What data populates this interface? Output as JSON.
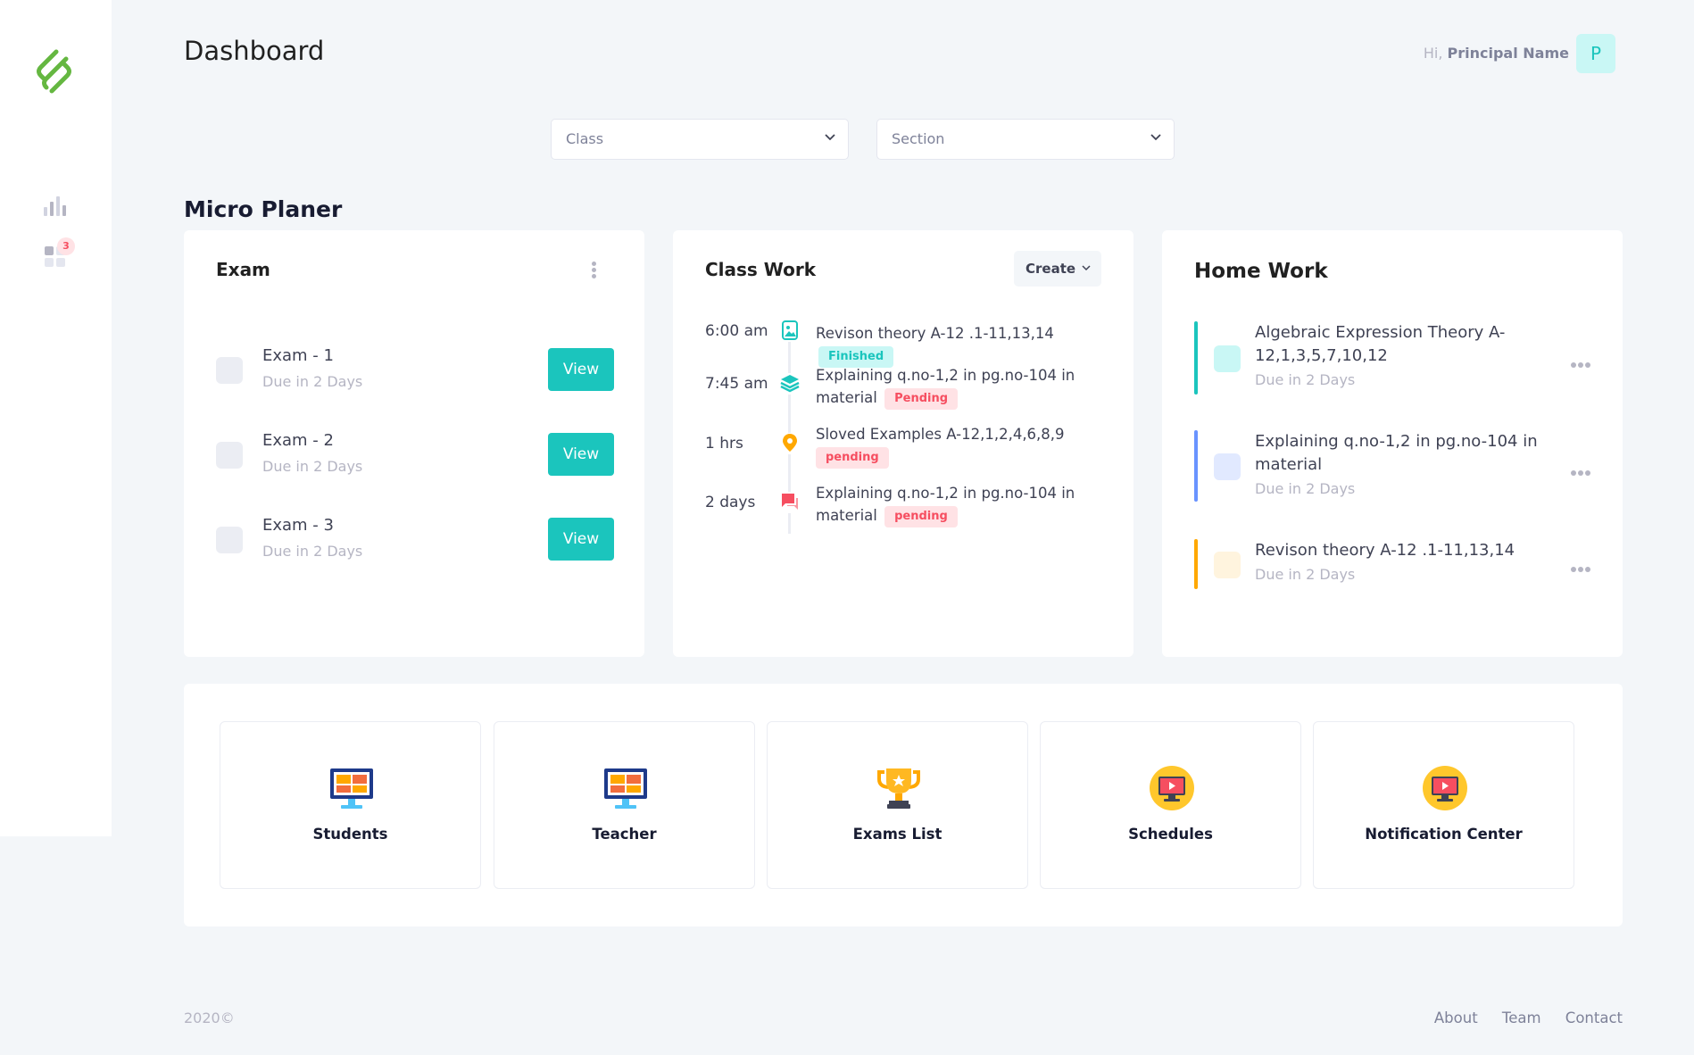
{
  "header": {
    "title": "Dashboard",
    "greeting_prefix": "Hi,",
    "user_name": "Principal Name",
    "avatar_letter": "P"
  },
  "sidebar": {
    "notification_count": "3"
  },
  "filters": {
    "class_placeholder": "Class",
    "section_placeholder": "Section"
  },
  "micro_planer": {
    "title": "Micro Planer",
    "exam": {
      "title": "Exam",
      "items": [
        {
          "name": "Exam - 1",
          "due": "Due in 2 Days",
          "button": "View"
        },
        {
          "name": "Exam - 2",
          "due": "Due in 2 Days",
          "button": "View"
        },
        {
          "name": "Exam - 3",
          "due": "Due in 2 Days",
          "button": "View"
        }
      ]
    },
    "class_work": {
      "title": "Class Work",
      "create_label": "Create",
      "items": [
        {
          "time": "6:00 am",
          "text": "Revison theory A-12 .1-11,13,14",
          "status": "Finished",
          "icon": "image-icon",
          "color": "#1bc5bd"
        },
        {
          "time": "7:45 am",
          "text": "Explaining q.no-1,2 in pg.no-104 in material",
          "status": "Pending",
          "icon": "layers-icon",
          "color": "#1bc5bd"
        },
        {
          "time": "1 hrs",
          "text": "Sloved Examples A-12,1,2,4,6,8,9",
          "status": "pending",
          "icon": "location-pin-icon",
          "color": "#ffa800"
        },
        {
          "time": "2 days",
          "text": "Explaining q.no-1,2 in pg.no-104 in material",
          "status": "pending",
          "icon": "chat-icon",
          "color": "#f64e60"
        }
      ]
    },
    "home_work": {
      "title": "Home Work",
      "items": [
        {
          "title": "Algebraic Expression Theory A-12,1,3,5,7,10,12",
          "due": "Due in 2 Days",
          "color": "#1bc5bd",
          "tint": "#c9f7f5"
        },
        {
          "title": "Explaining q.no-1,2 in pg.no-104 in material",
          "due": "Due in 2 Days",
          "color": "#6993ff",
          "tint": "#e1e9ff"
        },
        {
          "title": "Revison theory A-12 .1-11,13,14",
          "due": "Due in 2 Days",
          "color": "#ffa800",
          "tint": "#fff4de"
        }
      ]
    }
  },
  "quick_links": [
    {
      "label": "Students",
      "icon": "monitor-grid-icon"
    },
    {
      "label": "Teacher",
      "icon": "monitor-grid-icon"
    },
    {
      "label": "Exams List",
      "icon": "trophy-icon"
    },
    {
      "label": "Schedules",
      "icon": "video-monitor-icon"
    },
    {
      "label": "Notification Center",
      "icon": "video-monitor-icon"
    }
  ],
  "footer": {
    "copyright": "2020©",
    "links": [
      "About",
      "Team",
      "Contact"
    ]
  }
}
